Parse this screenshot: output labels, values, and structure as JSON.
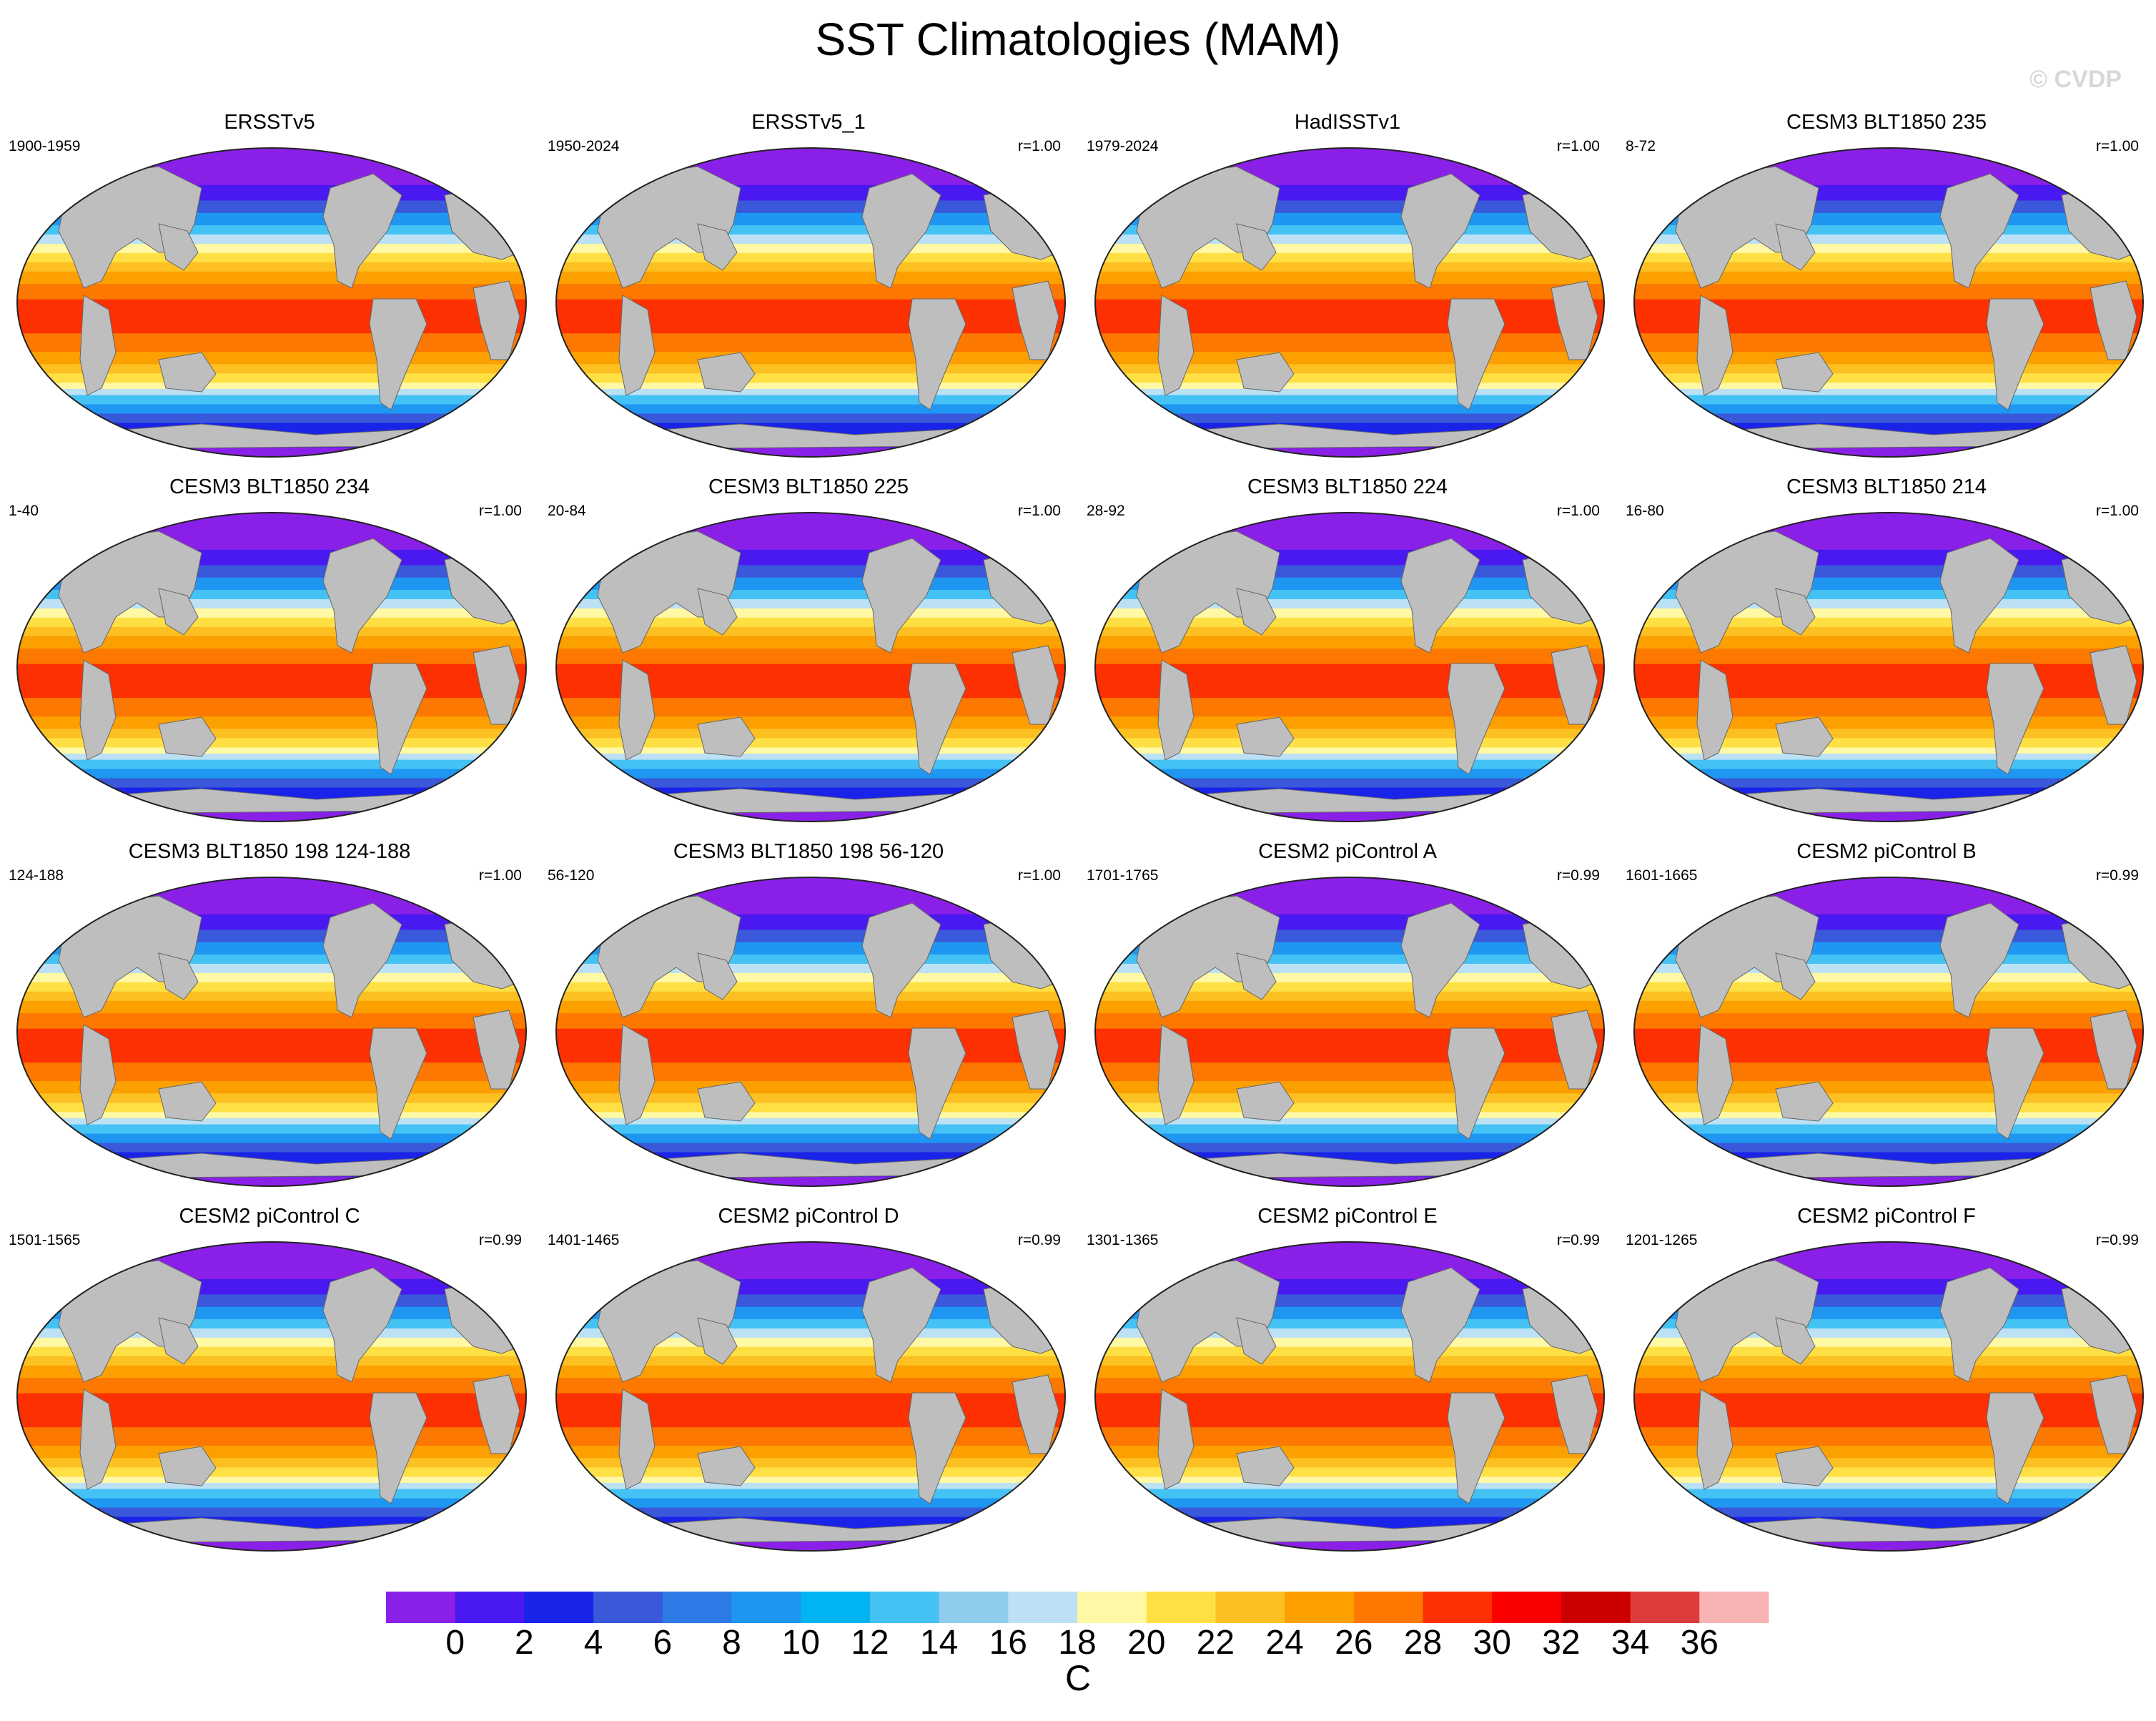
{
  "title": "SST Climatologies (MAM)",
  "watermark": "© CVDP",
  "colorbar": {
    "colors": [
      "#8a20e8",
      "#4a18f0",
      "#1a24e8",
      "#3a58da",
      "#2e7ae6",
      "#1e96f2",
      "#00b4f2",
      "#44c2f4",
      "#90ccec",
      "#bce0f4",
      "#fff8a4",
      "#ffe044",
      "#fcc022",
      "#fca000",
      "#fc7800",
      "#fc3000",
      "#fa0000",
      "#cc0000",
      "#dc3c3c",
      "#f8b4b4"
    ],
    "tick_labels": [
      "0",
      "2",
      "4",
      "6",
      "8",
      "10",
      "12",
      "14",
      "16",
      "18",
      "20",
      "22",
      "24",
      "26",
      "28",
      "30",
      "32",
      "34",
      "36"
    ],
    "unit": "C"
  },
  "panels": [
    {
      "title": "ERSSTv5",
      "years": "1900-1959",
      "r": ""
    },
    {
      "title": "ERSSTv5_1",
      "years": "1950-2024",
      "r": "r=1.00"
    },
    {
      "title": "HadISSTv1",
      "years": "1979-2024",
      "r": "r=1.00"
    },
    {
      "title": "CESM3 BLT1850 235",
      "years": "8-72",
      "r": "r=1.00"
    },
    {
      "title": "CESM3 BLT1850 234",
      "years": "1-40",
      "r": "r=1.00"
    },
    {
      "title": "CESM3 BLT1850 225",
      "years": "20-84",
      "r": "r=1.00"
    },
    {
      "title": "CESM3 BLT1850 224",
      "years": "28-92",
      "r": "r=1.00"
    },
    {
      "title": "CESM3 BLT1850 214",
      "years": "16-80",
      "r": "r=1.00"
    },
    {
      "title": "CESM3 BLT1850 198 124-188",
      "years": "124-188",
      "r": "r=1.00"
    },
    {
      "title": "CESM3 BLT1850 198 56-120",
      "years": "56-120",
      "r": "r=1.00"
    },
    {
      "title": "CESM2 piControl A",
      "years": "1701-1765",
      "r": "r=0.99"
    },
    {
      "title": "CESM2 piControl B",
      "years": "1601-1665",
      "r": "r=0.99"
    },
    {
      "title": "CESM2 piControl C",
      "years": "1501-1565",
      "r": "r=0.99"
    },
    {
      "title": "CESM2 piControl D",
      "years": "1401-1465",
      "r": "r=0.99"
    },
    {
      "title": "CESM2 piControl E",
      "years": "1301-1365",
      "r": "r=0.99"
    },
    {
      "title": "CESM2 piControl F",
      "years": "1201-1265",
      "r": "r=0.99"
    }
  ]
}
